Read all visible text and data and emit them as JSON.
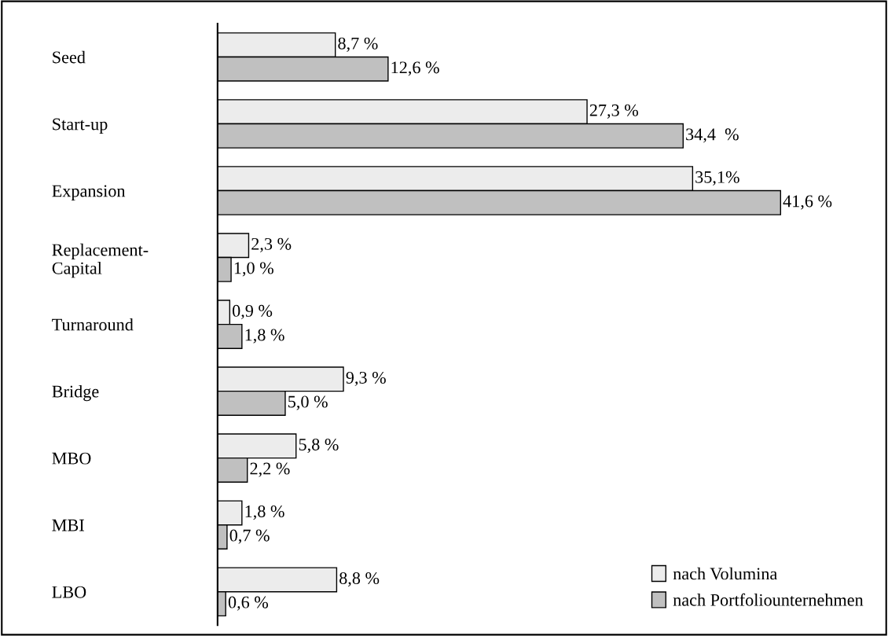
{
  "chart_data": {
    "type": "bar",
    "orientation": "horizontal",
    "categories": [
      "Seed",
      "Start-up",
      "Expansion",
      "Replacement-\nCapital",
      "Turnaround",
      "Bridge",
      "MBO",
      "MBI",
      "LBO"
    ],
    "series": [
      {
        "name": "nach Volumina",
        "color": "#ececec",
        "values": [
          8.7,
          27.3,
          35.1,
          2.3,
          0.9,
          9.3,
          5.8,
          1.8,
          8.8
        ],
        "value_labels": [
          "8,7 %",
          "27,3 %",
          "35,1%",
          "2,3 %",
          "0,9 %",
          "9,3 %",
          "5,8 %",
          "1,8 %",
          "8,8 %"
        ]
      },
      {
        "name": "nach Portfoliounternehmen",
        "color": "#c0c0c0",
        "values": [
          12.6,
          34.4,
          41.6,
          1.0,
          1.8,
          5.0,
          2.2,
          0.7,
          0.6
        ],
        "value_labels": [
          "12,6 %",
          "34,4  %",
          "41,6 %",
          "1,0 %",
          "1,8 %",
          "5,0 %",
          "2,2 %",
          "0,7 %",
          "0,6 %"
        ]
      }
    ],
    "legend": "bottom right",
    "grid": false
  }
}
